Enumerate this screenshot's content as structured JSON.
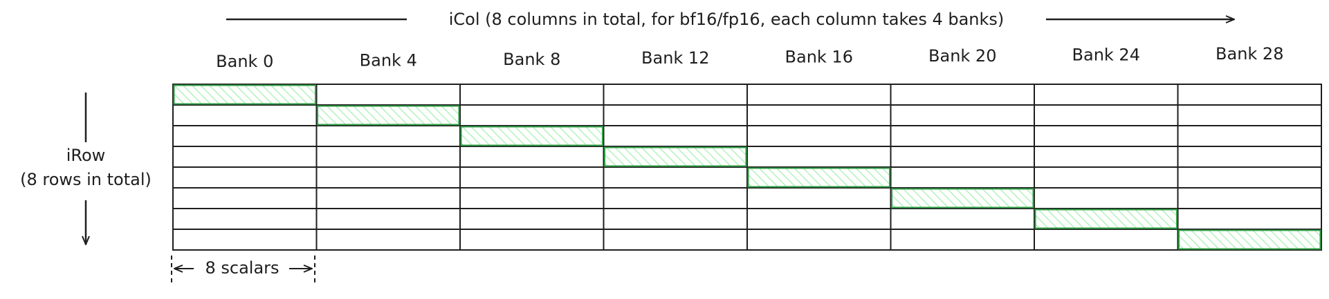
{
  "col_axis": {
    "label": "iCol (8 columns in total, for bf16/fp16, each column takes 4 banks)"
  },
  "row_axis": {
    "label_line1": "iRow",
    "label_line2": "(8 rows in total)"
  },
  "banks": [
    "Bank 0",
    "Bank 4",
    "Bank 8",
    "Bank 12",
    "Bank 16",
    "Bank 20",
    "Bank 24",
    "Bank 28"
  ],
  "grid": {
    "rows": 8,
    "cols": 8
  },
  "highlighted_cells": [
    {
      "row": 0,
      "col": 0
    },
    {
      "row": 1,
      "col": 1
    },
    {
      "row": 2,
      "col": 2
    },
    {
      "row": 3,
      "col": 3
    },
    {
      "row": 4,
      "col": 4
    },
    {
      "row": 5,
      "col": 5
    },
    {
      "row": 6,
      "col": 6
    },
    {
      "row": 7,
      "col": 7
    }
  ],
  "scalar_span": {
    "label": "8 scalars"
  },
  "colors": {
    "ink": "#1e1e1e",
    "highlight_stroke": "#2f9e44",
    "highlight_hatch": "#b2f2bb"
  }
}
